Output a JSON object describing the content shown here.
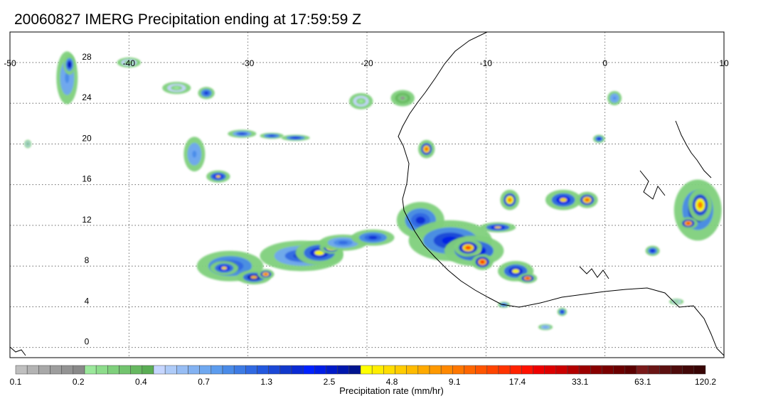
{
  "title": "20060827 IMERG Precipitation ending at 17:59:59 Z",
  "map": {
    "lon_range": [
      -50,
      10
    ],
    "lat_range": [
      -1,
      31
    ],
    "lon_ticks": [
      -50,
      -40,
      -30,
      -20,
      -10,
      0,
      10
    ],
    "lat_ticks": [
      0,
      4,
      8,
      12,
      16,
      20,
      24,
      28
    ],
    "grid": true,
    "grid_style": "dotted",
    "coastline_color": "#000000",
    "rain_cells": [
      {
        "lon": -45.2,
        "lat": 26.5,
        "rx": 0.9,
        "ry": 2.6,
        "level": 9
      },
      {
        "lon": -45.0,
        "lat": 27.8,
        "rx": 0.5,
        "ry": 1.0,
        "level": 14
      },
      {
        "lon": -40.0,
        "lat": 28.0,
        "rx": 1.0,
        "ry": 0.5,
        "level": 3
      },
      {
        "lon": -36.0,
        "lat": 25.5,
        "rx": 1.2,
        "ry": 0.6,
        "level": 3
      },
      {
        "lon": -33.5,
        "lat": 25.0,
        "rx": 0.7,
        "ry": 0.6,
        "level": 12
      },
      {
        "lon": -34.5,
        "lat": 19.0,
        "rx": 0.9,
        "ry": 1.7,
        "level": 9
      },
      {
        "lon": -32.5,
        "lat": 16.8,
        "rx": 1.0,
        "ry": 0.6,
        "level": 16
      },
      {
        "lon": -30.5,
        "lat": 21.0,
        "rx": 1.2,
        "ry": 0.4,
        "level": 11
      },
      {
        "lon": -28.0,
        "lat": 20.8,
        "rx": 1.0,
        "ry": 0.3,
        "level": 12
      },
      {
        "lon": -26.0,
        "lat": 20.6,
        "rx": 1.2,
        "ry": 0.3,
        "level": 13
      },
      {
        "lon": -31.5,
        "lat": 8.0,
        "rx": 2.8,
        "ry": 1.5,
        "level": 12
      },
      {
        "lon": -32.0,
        "lat": 7.8,
        "rx": 1.2,
        "ry": 0.7,
        "level": 16
      },
      {
        "lon": -29.5,
        "lat": 6.9,
        "rx": 1.4,
        "ry": 0.7,
        "level": 17
      },
      {
        "lon": -28.5,
        "lat": 7.2,
        "rx": 0.7,
        "ry": 0.5,
        "level": 21
      },
      {
        "lon": -25.5,
        "lat": 9.0,
        "rx": 3.5,
        "ry": 1.5,
        "level": 11
      },
      {
        "lon": -24.0,
        "lat": 9.3,
        "rx": 2.0,
        "ry": 1.2,
        "level": 15
      },
      {
        "lon": -23.0,
        "lat": 9.8,
        "rx": 1.0,
        "ry": 0.6,
        "level": 19
      },
      {
        "lon": -22.0,
        "lat": 10.3,
        "rx": 2.0,
        "ry": 0.8,
        "level": 10
      },
      {
        "lon": -19.5,
        "lat": 10.8,
        "rx": 1.8,
        "ry": 0.8,
        "level": 12
      },
      {
        "lon": -20.5,
        "lat": 24.2,
        "rx": 1.0,
        "ry": 0.8,
        "level": 3
      },
      {
        "lon": -17.0,
        "lat": 24.5,
        "rx": 1.0,
        "ry": 0.8,
        "level": 2
      },
      {
        "lon": -15.0,
        "lat": 19.5,
        "rx": 0.7,
        "ry": 0.9,
        "level": 20
      },
      {
        "lon": -15.5,
        "lat": 12.5,
        "rx": 2.0,
        "ry": 1.8,
        "level": 12
      },
      {
        "lon": -13.0,
        "lat": 10.5,
        "rx": 3.5,
        "ry": 2.0,
        "level": 13
      },
      {
        "lon": -11.0,
        "lat": 9.5,
        "rx": 2.5,
        "ry": 1.5,
        "level": 16
      },
      {
        "lon": -11.5,
        "lat": 9.8,
        "rx": 1.2,
        "ry": 0.9,
        "level": 21
      },
      {
        "lon": -10.3,
        "lat": 8.4,
        "rx": 0.9,
        "ry": 0.8,
        "level": 22
      },
      {
        "lon": -7.5,
        "lat": 7.5,
        "rx": 1.5,
        "ry": 1.0,
        "level": 15
      },
      {
        "lon": -6.5,
        "lat": 6.8,
        "rx": 0.8,
        "ry": 0.5,
        "level": 22
      },
      {
        "lon": -9.0,
        "lat": 11.8,
        "rx": 1.5,
        "ry": 0.5,
        "level": 16
      },
      {
        "lon": -8.0,
        "lat": 14.5,
        "rx": 0.8,
        "ry": 1.0,
        "level": 19
      },
      {
        "lon": -3.5,
        "lat": 14.5,
        "rx": 1.5,
        "ry": 1.0,
        "level": 16
      },
      {
        "lon": -1.5,
        "lat": 14.5,
        "rx": 0.9,
        "ry": 0.8,
        "level": 20
      },
      {
        "lon": 0.8,
        "lat": 24.5,
        "rx": 0.6,
        "ry": 0.7,
        "level": 9
      },
      {
        "lon": -0.5,
        "lat": 20.5,
        "rx": 0.5,
        "ry": 0.4,
        "level": 13
      },
      {
        "lon": 7.8,
        "lat": 13.5,
        "rx": 2.0,
        "ry": 3.0,
        "level": 14
      },
      {
        "lon": 8.0,
        "lat": 14.0,
        "rx": 1.0,
        "ry": 1.6,
        "level": 19
      },
      {
        "lon": 7.0,
        "lat": 12.2,
        "rx": 0.8,
        "ry": 0.6,
        "level": 22
      },
      {
        "lon": 4.0,
        "lat": 9.5,
        "rx": 0.6,
        "ry": 0.5,
        "level": 13
      },
      {
        "lon": -8.5,
        "lat": 4.2,
        "rx": 0.5,
        "ry": 0.3,
        "level": 11
      },
      {
        "lon": -3.6,
        "lat": 3.5,
        "rx": 0.4,
        "ry": 0.4,
        "level": 13
      },
      {
        "lon": -5.0,
        "lat": 2.0,
        "rx": 0.6,
        "ry": 0.3,
        "level": 8
      },
      {
        "lon": 6.0,
        "lat": 4.5,
        "rx": 0.6,
        "ry": 0.3,
        "level": 3
      },
      {
        "lon": -48.5,
        "lat": 20.0,
        "rx": 0.3,
        "ry": 0.4,
        "level": 4
      }
    ]
  },
  "colorbar": {
    "label": "Precipitation rate (mm/hr)",
    "tick_labels": [
      "0.1",
      "0.2",
      "0.4",
      "0.7",
      "1.3",
      "2.5",
      "4.8",
      "9.1",
      "17.4",
      "33.1",
      "63.1",
      "120.2"
    ],
    "colors": [
      "#bfbfbf",
      "#b3b3b3",
      "#a8a8a8",
      "#9d9d9d",
      "#939393",
      "#898989",
      "#9be89b",
      "#8ddc8b",
      "#7fd07c",
      "#72c46e",
      "#66b860",
      "#5aad54",
      "#c6d6ff",
      "#aecbf8",
      "#97bdf4",
      "#83b2f2",
      "#6fa8f0",
      "#5c9cee",
      "#4a8be8",
      "#3d7be4",
      "#3069e2",
      "#2358de",
      "#1b48d6",
      "#1138cc",
      "#0a2ad4",
      "#0021ff",
      "#001de6",
      "#001ac8",
      "#0017ad",
      "#00148f",
      "#ffff00",
      "#ffee00",
      "#ffdd00",
      "#ffcc00",
      "#ffbb00",
      "#ffaa00",
      "#ff9900",
      "#ff8800",
      "#ff7700",
      "#ff6600",
      "#ff5500",
      "#ff4400",
      "#ff3300",
      "#ff2200",
      "#ff1100",
      "#ee0000",
      "#dd0000",
      "#cc0000",
      "#b30000",
      "#9c0000",
      "#880000",
      "#7a0000",
      "#6b0000",
      "#5c0000",
      "#7a1a1a",
      "#6a1515",
      "#5c1010",
      "#4e0c0c",
      "#420808",
      "#380505"
    ]
  }
}
